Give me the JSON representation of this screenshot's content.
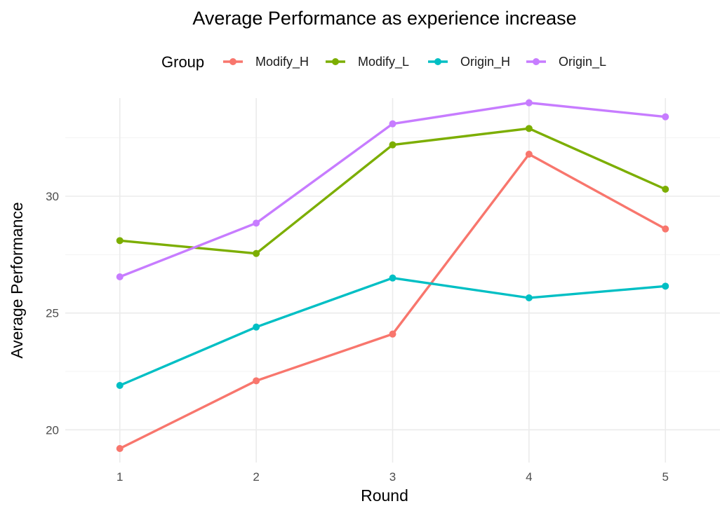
{
  "chart_data": {
    "type": "line",
    "title": "Average Performance as experience increase",
    "xlabel": "Round",
    "ylabel": "Average Performance",
    "legend_title": "Group",
    "legend_position": "top",
    "grid": true,
    "x": [
      1,
      2,
      3,
      4,
      5
    ],
    "x_ticks": [
      "1",
      "2",
      "3",
      "4",
      "5"
    ],
    "y_ticks": [
      20,
      25,
      30
    ],
    "y_tick_labels": [
      "20",
      "25",
      "30"
    ],
    "xlim": [
      0.6,
      5.4
    ],
    "ylim": [
      18.6,
      34.2
    ],
    "series": [
      {
        "name": "Modify_H",
        "color": "#F8766D",
        "values": [
          19.2,
          22.1,
          24.1,
          31.8,
          28.6
        ]
      },
      {
        "name": "Modify_L",
        "color": "#7CAE00",
        "values": [
          28.1,
          27.55,
          32.2,
          32.9,
          30.3
        ]
      },
      {
        "name": "Origin_H",
        "color": "#00BFC4",
        "values": [
          21.9,
          24.4,
          26.5,
          25.65,
          26.15
        ]
      },
      {
        "name": "Origin_L",
        "color": "#C77CFF",
        "values": [
          26.55,
          28.85,
          33.1,
          34.0,
          33.4
        ]
      }
    ]
  }
}
